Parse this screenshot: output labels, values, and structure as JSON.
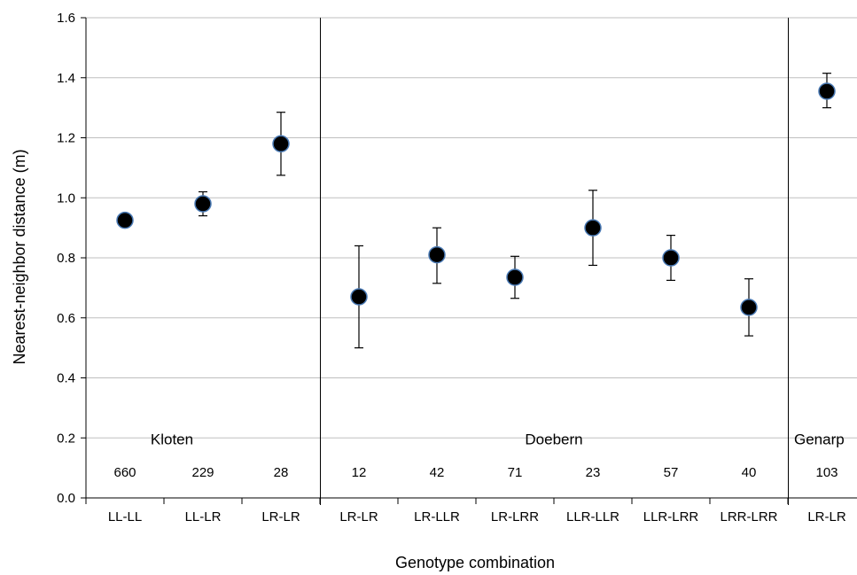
{
  "chart_data": {
    "type": "scatter",
    "title": "",
    "xlabel": "Genotype combination",
    "ylabel": "Nearest-neighbor distance (m)",
    "ylim": [
      0,
      1.6
    ],
    "yticks": [
      "0.0",
      "0.2",
      "0.4",
      "0.6",
      "0.8",
      "1.0",
      "1.2",
      "1.4",
      "1.6"
    ],
    "grid": "horizontal",
    "categories": [
      "LL-LL",
      "LL-LR",
      "LR-LR",
      "LR-LR",
      "LR-LLR",
      "LR-LRR",
      "LLR-LLR",
      "LLR-LRR",
      "LRR-LRR",
      "LR-LR"
    ],
    "values": [
      0.925,
      0.98,
      1.18,
      0.67,
      0.81,
      0.735,
      0.9,
      0.8,
      0.635,
      1.355
    ],
    "error_low": [
      0.925,
      0.94,
      1.075,
      0.5,
      0.715,
      0.665,
      0.775,
      0.725,
      0.54,
      1.3
    ],
    "error_high": [
      0.925,
      1.02,
      1.285,
      0.84,
      0.9,
      0.805,
      1.025,
      0.875,
      0.73,
      1.415
    ],
    "counts": [
      "660",
      "229",
      "28",
      "12",
      "42",
      "71",
      "23",
      "57",
      "40",
      "103"
    ],
    "groups": [
      {
        "name": "Kloten",
        "first_index": 0,
        "last_index": 2
      },
      {
        "name": "Doebern",
        "first_index": 3,
        "last_index": 8
      },
      {
        "name": "Genarp",
        "first_index": 9,
        "last_index": 9
      }
    ],
    "marker_color": "#000000",
    "marker_edge_color": "#4a7ab5",
    "gridline_color": "#bfbfbf"
  }
}
